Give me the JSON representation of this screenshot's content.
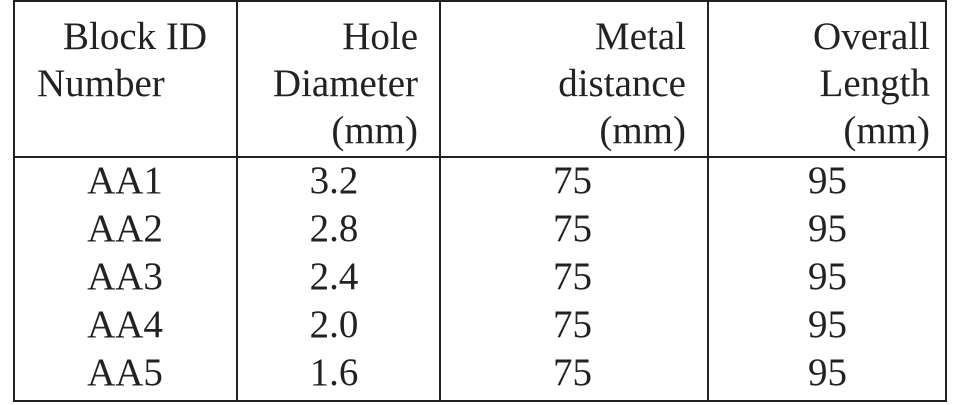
{
  "table": {
    "header": [
      [
        "Block ID",
        "Number"
      ],
      [
        "Hole",
        "Diameter",
        "(mm)"
      ],
      [
        "Metal",
        "distance",
        "(mm)"
      ],
      [
        "Overall",
        "Length",
        "(mm)"
      ]
    ],
    "rows": [
      [
        "AA1",
        "3.2",
        "75",
        "95"
      ],
      [
        "AA2",
        "2.8",
        "75",
        "95"
      ],
      [
        "AA3",
        "2.4",
        "75",
        "95"
      ],
      [
        "AA4",
        "2.0",
        "75",
        "95"
      ],
      [
        "AA5",
        "1.6",
        "75",
        "95"
      ]
    ]
  }
}
